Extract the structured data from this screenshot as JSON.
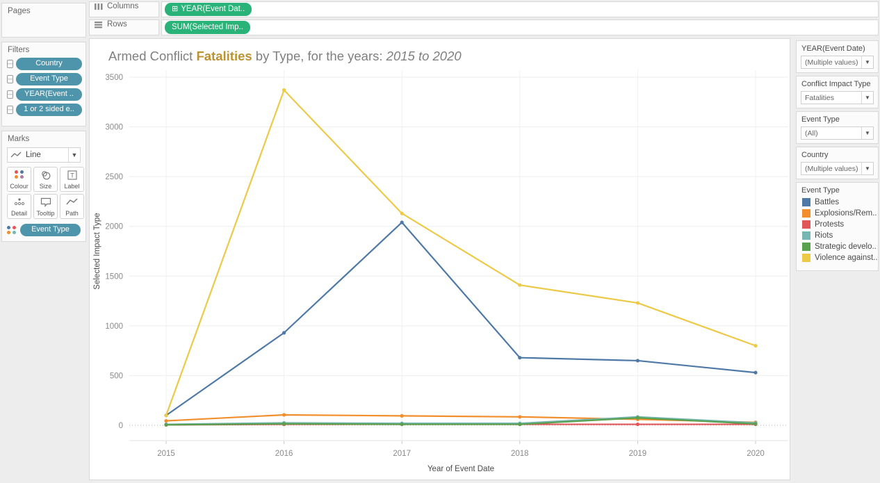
{
  "colors": {
    "dimension_pill": "#4e95ac",
    "measure_pill": "#2ab378",
    "title_highlight": "#bd9332"
  },
  "pages": {
    "title": "Pages"
  },
  "filters": {
    "title": "Filters",
    "pills": [
      "Country",
      "Event Type",
      "YEAR(Event ..",
      "1 or 2 sided e.."
    ]
  },
  "marks": {
    "title": "Marks",
    "mark_type": "Line",
    "buttons": [
      {
        "label": "Colour"
      },
      {
        "label": "Size"
      },
      {
        "label": "Label"
      },
      {
        "label": "Detail"
      },
      {
        "label": "Tooltip"
      },
      {
        "label": "Path"
      }
    ],
    "colour_pill": "Event Type"
  },
  "shelves": {
    "columns": {
      "label": "Columns",
      "pill_prefix": "⊞",
      "pill": "YEAR(Event Dat.."
    },
    "rows": {
      "label": "Rows",
      "pill": "SUM(Selected Imp.."
    }
  },
  "chart_title": {
    "prefix": "Armed Conflict ",
    "highlight": "Fatalities",
    "middle": " by Type, for the years: ",
    "years": "2015 to 2020"
  },
  "right_panel": {
    "cards": [
      {
        "title": "YEAR(Event Date)",
        "value": "(Multiple values)"
      },
      {
        "title": "Conflict Impact Type",
        "value": "Fatalities"
      },
      {
        "title": "Event Type",
        "value": "(All)"
      },
      {
        "title": "Country",
        "value": "(Multiple values)"
      }
    ],
    "legend": {
      "title": "Event Type",
      "items": [
        {
          "label": "Battles",
          "color": "#4e79a7"
        },
        {
          "label": "Explosions/Rem..",
          "color": "#f28e2b"
        },
        {
          "label": "Protests",
          "color": "#e15759"
        },
        {
          "label": "Riots",
          "color": "#76b7b2"
        },
        {
          "label": "Strategic develo..",
          "color": "#59a14f"
        },
        {
          "label": "Violence against..",
          "color": "#edc948"
        }
      ]
    }
  },
  "chart_data": {
    "type": "line",
    "title": "Armed Conflict Fatalities by Type, for the years: 2015 to 2020",
    "xlabel": "Year of Event Date",
    "ylabel": "Selected Impact Type",
    "x": [
      2015,
      2016,
      2017,
      2018,
      2019,
      2020
    ],
    "ylim": [
      0,
      3500
    ],
    "yticks": [
      0,
      500,
      1000,
      1500,
      2000,
      2500,
      3000,
      3500
    ],
    "grid": true,
    "legend_position": "right",
    "series": [
      {
        "name": "Battles",
        "color": "#4e79a7",
        "values": [
          100,
          930,
          2040,
          680,
          650,
          530
        ]
      },
      {
        "name": "Explosions/Rem..",
        "color": "#f28e2b",
        "values": [
          45,
          105,
          95,
          85,
          60,
          30
        ]
      },
      {
        "name": "Protests",
        "color": "#e15759",
        "values": [
          5,
          10,
          10,
          10,
          10,
          10
        ]
      },
      {
        "name": "Riots",
        "color": "#76b7b2",
        "values": [
          10,
          25,
          20,
          20,
          85,
          25
        ]
      },
      {
        "name": "Strategic develo..",
        "color": "#59a14f",
        "values": [
          5,
          15,
          10,
          10,
          75,
          15
        ]
      },
      {
        "name": "Violence against..",
        "color": "#edc948",
        "values": [
          100,
          3370,
          2130,
          1410,
          1230,
          800
        ]
      }
    ]
  }
}
